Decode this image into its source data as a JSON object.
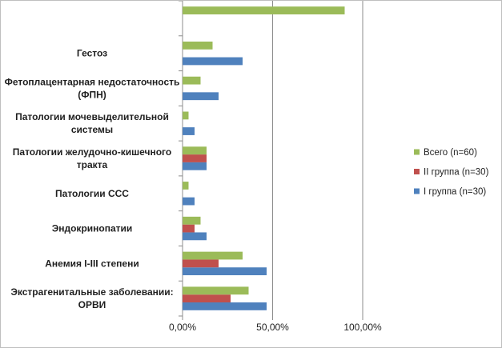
{
  "chart_data": {
    "type": "bar",
    "orientation": "horizontal",
    "categories": [
      [
        "Экстрагенитальные заболевании:",
        "ОРВИ"
      ],
      [
        "Анемия I-III степени"
      ],
      [
        "Эндокринопатии"
      ],
      [
        "Патологии ССС"
      ],
      [
        "Патологии желудочно-кишечного",
        "тракта"
      ],
      [
        "Патологии мочевыделительной",
        "системы"
      ],
      [
        "Фетоплацентарная недостаточность",
        "(ФПН)"
      ],
      [
        "Гестоз"
      ],
      [
        ""
      ]
    ],
    "series": [
      {
        "name": "I группа (n=30)",
        "color": "#4f81bd",
        "values": [
          0.4667,
          0.4667,
          0.1333,
          0.0667,
          0.1333,
          0.0667,
          0.2,
          0.3333,
          null
        ]
      },
      {
        "name": "II группа (n=30)",
        "color": "#c0504d",
        "values": [
          0.2667,
          0.2,
          0.0667,
          null,
          0.1333,
          null,
          null,
          null,
          null
        ]
      },
      {
        "name": "Всего (n=60)",
        "color": "#9bbb59",
        "values": [
          0.3667,
          0.3333,
          0.1,
          0.0333,
          0.1333,
          0.0333,
          0.1,
          0.1667,
          0.9
        ]
      }
    ],
    "xlim": [
      0,
      1
    ],
    "xticks": [
      0,
      0.5,
      1
    ],
    "xtick_labels": [
      "0,00%",
      "50,00%",
      "100,00%"
    ],
    "grid": "vertical major",
    "legend": "right",
    "legend_order": [
      "Всего (n=60)",
      "II группа (n=30)",
      "I группа (n=30)"
    ]
  }
}
